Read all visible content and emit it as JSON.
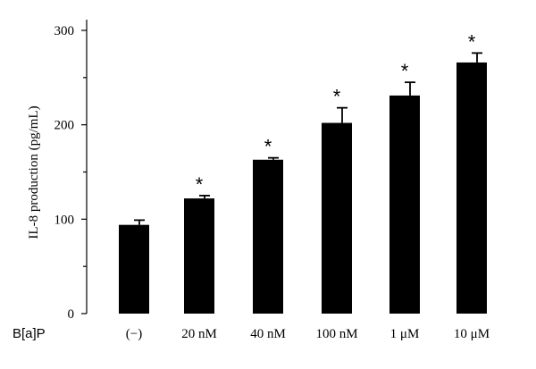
{
  "chart_data": {
    "type": "bar",
    "title": "",
    "ylabel": "IL-8 production (pg/mL)",
    "xlabel": "",
    "row_label": "B[a]P",
    "categories": [
      "(−)",
      "20 nM",
      "40 nM",
      "100 nM",
      "1 μM",
      "10 μM"
    ],
    "values": [
      94,
      122,
      163,
      202,
      231,
      266
    ],
    "errors": [
      5,
      3,
      2,
      16,
      14,
      10
    ],
    "significance": [
      "",
      "*",
      "*",
      "*",
      "*",
      "*"
    ],
    "ylim": [
      0,
      300
    ],
    "yticks": [
      0,
      100,
      200,
      300
    ],
    "bar_color": "#000000",
    "grid": false
  }
}
